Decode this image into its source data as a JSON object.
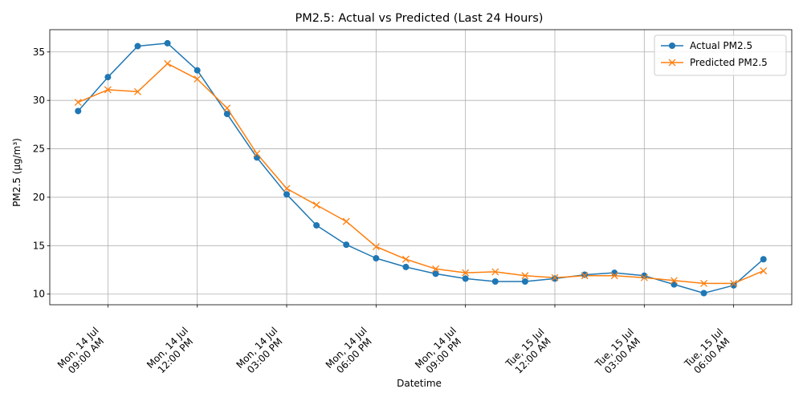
{
  "chart_data": {
    "type": "line",
    "title": "PM2.5: Actual vs Predicted (Last 24 Hours)",
    "xlabel": "Datetime",
    "ylabel": "PM2.5 (µg/m³)",
    "x": [
      "2025-07-14 08:00",
      "2025-07-14 09:00",
      "2025-07-14 10:00",
      "2025-07-14 11:00",
      "2025-07-14 12:00",
      "2025-07-14 13:00",
      "2025-07-14 14:00",
      "2025-07-14 15:00",
      "2025-07-14 16:00",
      "2025-07-14 17:00",
      "2025-07-14 18:00",
      "2025-07-14 19:00",
      "2025-07-14 20:00",
      "2025-07-14 21:00",
      "2025-07-14 22:00",
      "2025-07-14 23:00",
      "2025-07-15 00:00",
      "2025-07-15 01:00",
      "2025-07-15 02:00",
      "2025-07-15 03:00",
      "2025-07-15 04:00",
      "2025-07-15 05:00",
      "2025-07-15 06:00",
      "2025-07-15 07:00"
    ],
    "xlim": [
      "2025-07-14 07:03",
      "2025-07-15 07:57"
    ],
    "ylim": [
      8.9,
      37.3
    ],
    "x_ticks": [
      {
        "x": "2025-07-14 09:00",
        "lines": [
          "Mon, 14 Jul",
          "09:00 AM"
        ]
      },
      {
        "x": "2025-07-14 12:00",
        "lines": [
          "Mon, 14 Jul",
          "12:00 PM"
        ]
      },
      {
        "x": "2025-07-14 15:00",
        "lines": [
          "Mon, 14 Jul",
          "03:00 PM"
        ]
      },
      {
        "x": "2025-07-14 18:00",
        "lines": [
          "Mon, 14 Jul",
          "06:00 PM"
        ]
      },
      {
        "x": "2025-07-14 21:00",
        "lines": [
          "Mon, 14 Jul",
          "09:00 PM"
        ]
      },
      {
        "x": "2025-07-15 00:00",
        "lines": [
          "Tue, 15 Jul",
          "12:00 AM"
        ]
      },
      {
        "x": "2025-07-15 03:00",
        "lines": [
          "Tue, 15 Jul",
          "03:00 AM"
        ]
      },
      {
        "x": "2025-07-15 06:00",
        "lines": [
          "Tue, 15 Jul",
          "06:00 AM"
        ]
      }
    ],
    "y_ticks": [
      10,
      15,
      20,
      25,
      30,
      35
    ],
    "grid": true,
    "legend_position": "top-right",
    "series": [
      {
        "name": "Actual PM2.5",
        "color": "#1f77b4",
        "marker": "circle",
        "values": [
          28.9,
          32.4,
          35.6,
          35.9,
          33.1,
          28.6,
          24.1,
          20.3,
          17.1,
          15.1,
          13.7,
          12.8,
          12.1,
          11.6,
          11.3,
          11.3,
          11.6,
          12.0,
          12.2,
          11.9,
          11.0,
          10.1,
          10.9,
          13.6
        ]
      },
      {
        "name": "Predicted PM2.5",
        "color": "#ff7f0e",
        "marker": "x",
        "values": [
          29.8,
          31.1,
          30.9,
          33.8,
          32.2,
          29.2,
          24.5,
          20.9,
          19.2,
          17.5,
          14.9,
          13.6,
          12.6,
          12.2,
          12.3,
          11.9,
          11.7,
          11.9,
          11.9,
          11.7,
          11.4,
          11.1,
          11.1,
          12.4
        ]
      }
    ]
  }
}
